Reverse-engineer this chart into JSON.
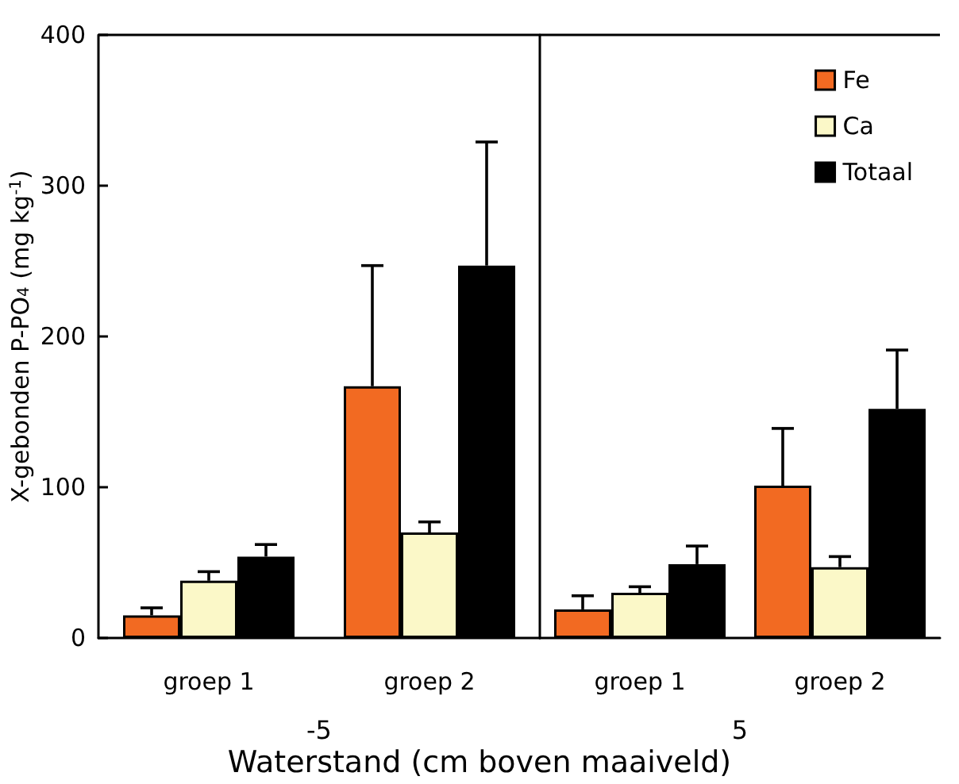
{
  "chart_data": [
    {
      "type": "bar",
      "categories": [
        "groep 1",
        "groep 2"
      ],
      "xlabel": "-5",
      "ylabel": "X-gebonden P-PO$_{4}$ (mg kg$^{-1}$)",
      "ylim": [
        0,
        400
      ],
      "yticks": [
        0,
        100,
        200,
        300,
        400
      ],
      "annotations": [
        "Waterstand (cm boven maaiveld)"
      ],
      "series": [
        {
          "color": "#f26a22",
          "values": [
            15,
            167
          ],
          "errors": [
            [
              15,
              20
            ],
            [
              167,
              247
            ]
          ]
        },
        {
          "color": "#fbf8c8",
          "values": [
            38,
            70
          ],
          "errors": [
            [
              38,
              44
            ],
            [
              70,
              77
            ]
          ]
        },
        {
          "color": "#000000",
          "values": [
            54,
            247
          ],
          "errors": [
            [
              54,
              62
            ],
            [
              247,
              329
            ]
          ]
        }
      ]
    },
    {
      "type": "bar",
      "categories": [
        "groep 1",
        "groep 2"
      ],
      "xlabel": "5",
      "ylim": [
        0,
        400
      ],
      "yticks": [
        0,
        100,
        200,
        300,
        400
      ],
      "tick_labels": "x",
      "legend": "top right",
      "series": [
        {
          "name": "Fe",
          "color": "#f26a22",
          "values": [
            19,
            101
          ],
          "errors": [
            [
              19,
              28
            ],
            [
              101,
              139
            ]
          ]
        },
        {
          "name": "Ca",
          "color": "#fbf8c8",
          "values": [
            30,
            47
          ],
          "errors": [
            [
              30,
              34
            ],
            [
              47,
              54
            ]
          ]
        },
        {
          "name": "Totaal",
          "color": "#000000",
          "values": [
            49,
            152
          ],
          "errors": [
            [
              49,
              61
            ],
            [
              152,
              191
            ]
          ]
        }
      ]
    }
  ]
}
